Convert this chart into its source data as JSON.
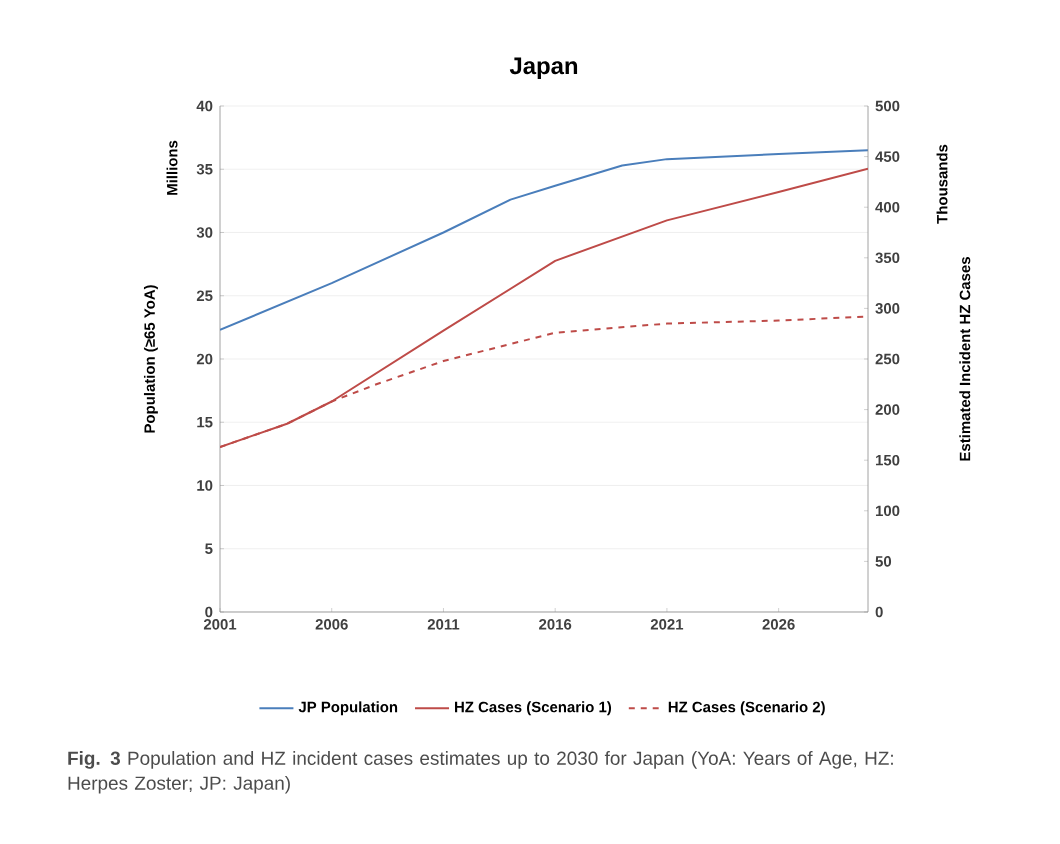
{
  "chart_data": {
    "type": "line",
    "title": "Japan",
    "ylabel": "Population  (≥65 YoA)",
    "y2label": "Estimated Incident HZ Cases",
    "annotations": [
      "Millions",
      "Thousands",
      "**Fig. 3** Population and HZ incident cases estimates up to 2030 for Japan (YoA: Years of Age, HZ: Herpes Zoster; JP: Japan)"
    ],
    "xlim": [
      2001,
      2030
    ],
    "xticks": [
      2001,
      2006,
      2011,
      2016,
      2021,
      2026
    ],
    "ylim": [
      0,
      40
    ],
    "yticks": [
      0,
      5,
      10,
      15,
      20,
      25,
      30,
      35,
      40
    ],
    "y2lim": [
      0,
      500
    ],
    "y2ticks": [
      0,
      50,
      100,
      150,
      200,
      250,
      300,
      350,
      400,
      450,
      500
    ],
    "grid": "y",
    "legend": "bottom",
    "marker": "none",
    "series": [
      {
        "name": "JP Population",
        "color": "#4a7ebb",
        "line_style": "solid",
        "x": [
          2001,
          2006,
          2011,
          2014,
          2016,
          2019,
          2021,
          2026,
          2030
        ],
        "values": [
          22.3,
          26.0,
          30.0,
          32.6,
          33.7,
          35.3,
          35.8,
          36.2,
          36.5
        ]
      },
      {
        "name": "HZ Cases (Scenario 1)",
        "color": "#be4b48",
        "line_style": "solid",
        "axis": "y2",
        "x": [
          2001,
          2004,
          2006,
          2011,
          2016,
          2021,
          2026,
          2030
        ],
        "values": [
          163,
          186,
          208,
          278,
          347,
          387,
          415,
          438
        ]
      },
      {
        "name": "HZ Cases (Scenario 2)",
        "color": "#be4b48",
        "line_style": "dashed",
        "axis": "y2",
        "x": [
          2001,
          2004,
          2006,
          2008,
          2011,
          2016,
          2021,
          2026,
          2030
        ],
        "values": [
          163,
          186,
          208,
          225,
          248,
          276,
          285,
          288,
          292
        ]
      }
    ]
  }
}
